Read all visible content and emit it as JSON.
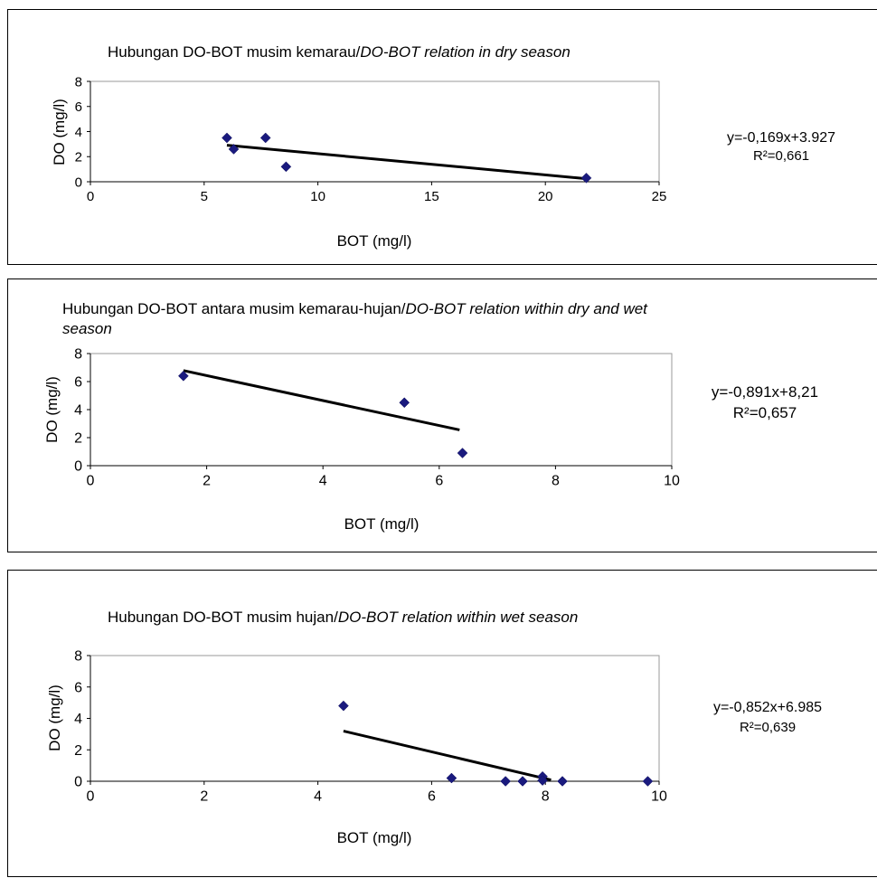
{
  "chart_data": [
    {
      "type": "scatter",
      "title": "Hubungan DO-BOT musim kemarau/",
      "title_italic": "DO-BOT relation in dry season",
      "xlabel": "BOT (mg/l)",
      "ylabel": "DO (mg/l)",
      "xlim": [
        0,
        25
      ],
      "ylim": [
        0,
        8
      ],
      "x_ticks": [
        "0",
        "5",
        "10",
        "15",
        "20",
        "25"
      ],
      "y_ticks": [
        "0",
        "2",
        "4",
        "6",
        "8"
      ],
      "points": [
        {
          "x": 6.0,
          "y": 3.5
        },
        {
          "x": 6.3,
          "y": 2.6
        },
        {
          "x": 7.7,
          "y": 3.5
        },
        {
          "x": 8.6,
          "y": 1.2
        },
        {
          "x": 21.8,
          "y": 0.3
        }
      ],
      "trendline": {
        "x_start": 6.0,
        "x_end": 21.8,
        "slope": -0.169,
        "intercept": 3.927
      },
      "equation": "y=-0,169x+3.927",
      "r2_label": "R²=0,661",
      "point_color": "#1a1a7e",
      "grid": false,
      "legend": "none"
    },
    {
      "type": "scatter",
      "title": "Hubungan DO-BOT antara musim kemarau-hujan/",
      "title_italic": "DO-BOT relation within dry and wet",
      "title_line2_italic": "season",
      "xlabel": "BOT (mg/l)",
      "ylabel": "DO (mg/l)",
      "xlim": [
        0,
        10
      ],
      "ylim": [
        0,
        8
      ],
      "x_ticks": [
        "0",
        "2",
        "4",
        "6",
        "8",
        "10"
      ],
      "y_ticks": [
        "0",
        "2",
        "4",
        "6",
        "8"
      ],
      "points": [
        {
          "x": 1.6,
          "y": 6.4
        },
        {
          "x": 5.4,
          "y": 4.5
        },
        {
          "x": 6.4,
          "y": 0.9
        }
      ],
      "trendline": {
        "x_start": 1.6,
        "x_end": 6.35,
        "slope": -0.891,
        "intercept": 8.21
      },
      "equation": "y=-0,891x+8,21",
      "r2_label": "R²=0,657",
      "point_color": "#1a1a7e",
      "grid": false,
      "legend": "none"
    },
    {
      "type": "scatter",
      "title": "Hubungan DO-BOT musim hujan/",
      "title_italic": "DO-BOT relation within wet season",
      "xlabel": "BOT (mg/l)",
      "ylabel": "DO (mg/l)",
      "xlim": [
        0,
        10
      ],
      "ylim": [
        0,
        8
      ],
      "x_ticks": [
        "0",
        "2",
        "4",
        "6",
        "8",
        "10"
      ],
      "y_ticks": [
        "0",
        "2",
        "4",
        "6",
        "8"
      ],
      "points": [
        {
          "x": 4.45,
          "y": 4.8
        },
        {
          "x": 6.35,
          "y": 0.2
        },
        {
          "x": 7.3,
          "y": 0.0
        },
        {
          "x": 7.6,
          "y": 0.0
        },
        {
          "x": 7.95,
          "y": 0.3
        },
        {
          "x": 7.95,
          "y": 0.05
        },
        {
          "x": 8.3,
          "y": 0.0
        },
        {
          "x": 9.8,
          "y": 0.0
        }
      ],
      "trendline": {
        "x_start": 4.45,
        "x_end": 8.1,
        "slope": -0.852,
        "intercept": 6.985
      },
      "equation": "y=-0,852x+6.985",
      "r2_label": "R²=0,639",
      "point_color": "#1a1a7e",
      "grid": false,
      "legend": "none"
    }
  ]
}
